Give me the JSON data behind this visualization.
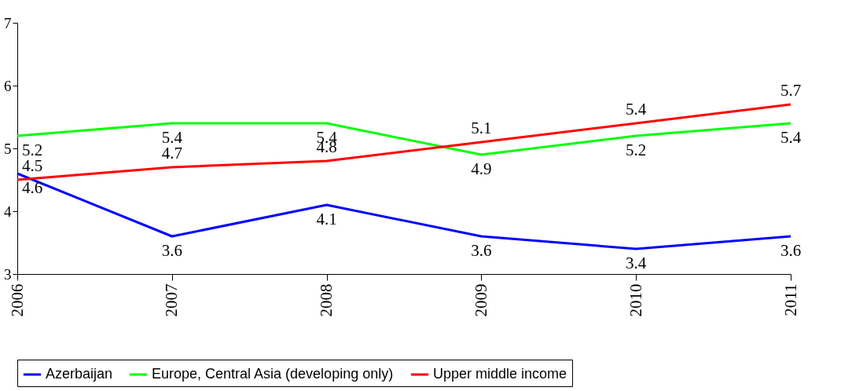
{
  "chart_data": {
    "type": "line",
    "categories": [
      "2006",
      "2007",
      "2008",
      "2009",
      "2010",
      "2011"
    ],
    "series": [
      {
        "name": "Azerbaijan",
        "color": "#0000ff",
        "values": [
          4.6,
          3.6,
          4.1,
          3.6,
          3.4,
          3.6
        ]
      },
      {
        "name": "Europe, Central Asia (developing only)",
        "color": "#00ff00",
        "values": [
          5.2,
          5.4,
          5.4,
          4.9,
          5.2,
          5.4
        ]
      },
      {
        "name": "Upper middle income",
        "color": "#ff0000",
        "values": [
          4.5,
          4.7,
          4.8,
          5.1,
          5.4,
          5.7
        ]
      }
    ],
    "ylim": [
      3,
      7
    ],
    "yticks": [
      3,
      4,
      5,
      6,
      7
    ],
    "grid": false,
    "legend": "bottom",
    "data_labels": true,
    "marker": "none",
    "line_style": "solid"
  }
}
